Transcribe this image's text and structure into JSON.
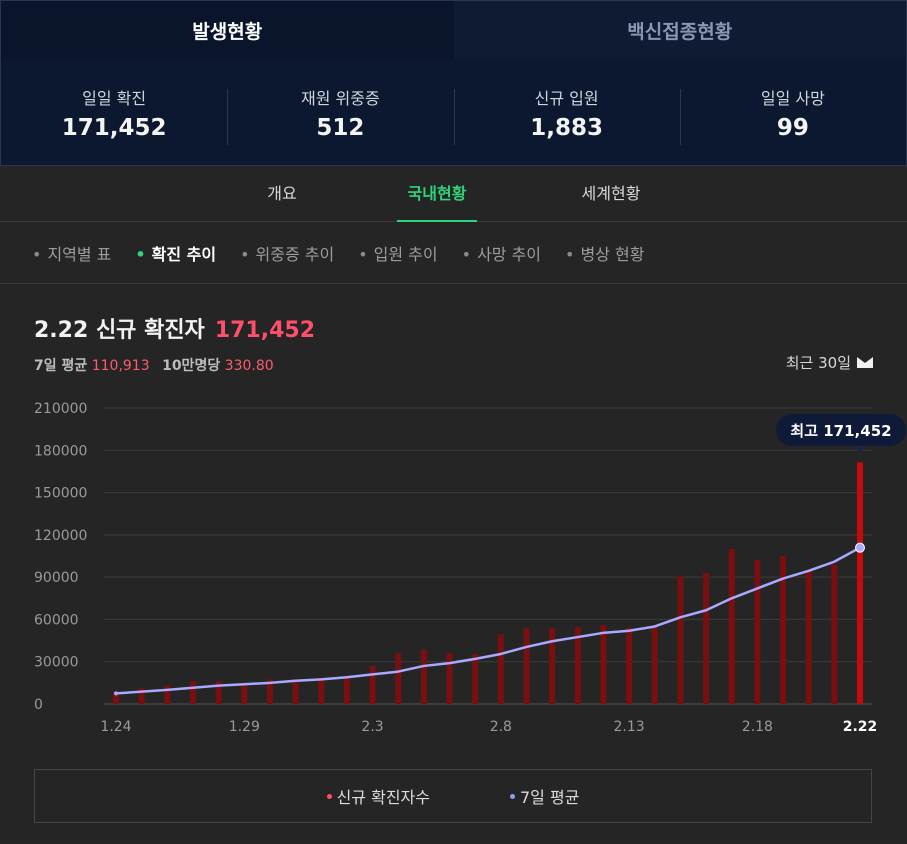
{
  "top_tabs": [
    {
      "label": "발생현황",
      "active": true
    },
    {
      "label": "백신접종현황",
      "active": false
    }
  ],
  "stats": [
    {
      "label": "일일 확진",
      "value": "171,452"
    },
    {
      "label": "재원 위중증",
      "value": "512"
    },
    {
      "label": "신규 입원",
      "value": "1,883"
    },
    {
      "label": "일일 사망",
      "value": "99"
    }
  ],
  "nav_tabs": [
    {
      "label": "개요",
      "active": false
    },
    {
      "label": "국내현황",
      "active": true
    },
    {
      "label": "세계현황",
      "active": false
    }
  ],
  "sub_tabs": [
    {
      "label": "지역별 표",
      "active": false
    },
    {
      "label": "확진 추이",
      "active": true
    },
    {
      "label": "위중증 추이",
      "active": false
    },
    {
      "label": "입원 추이",
      "active": false
    },
    {
      "label": "사망 추이",
      "active": false
    },
    {
      "label": "병상 현황",
      "active": false
    }
  ],
  "header": {
    "date_title": "2.22 신규 확진자",
    "highlight_value": "171,452",
    "avg_label": "7일 평균",
    "avg_value": "110,913",
    "per100k_label": "10만명당",
    "per100k_value": "330.80",
    "period_label": "최근 30일"
  },
  "colors": {
    "bar": "#7a0f12",
    "bar_last": "#c40a0a",
    "line": "#a9a9ff",
    "accent_green": "#2fd37a",
    "accent_red": "#ff4f6a"
  },
  "tooltip": {
    "label": "최고",
    "value": "171,452"
  },
  "chart_data": {
    "type": "bar",
    "categories": [
      "1.24",
      "1.25",
      "1.26",
      "1.27",
      "1.28",
      "1.29",
      "1.30",
      "1.31",
      "2.1",
      "2.2",
      "2.3",
      "2.4",
      "2.5",
      "2.6",
      "2.7",
      "2.8",
      "2.9",
      "2.10",
      "2.11",
      "2.12",
      "2.13",
      "2.14",
      "2.15",
      "2.16",
      "2.17",
      "2.18",
      "2.19",
      "2.20",
      "2.21",
      "2.22"
    ],
    "tick_labels": [
      {
        "index": 0,
        "label": "1.24"
      },
      {
        "index": 5,
        "label": "1.29"
      },
      {
        "index": 10,
        "label": "2.3"
      },
      {
        "index": 15,
        "label": "2.8"
      },
      {
        "index": 20,
        "label": "2.13"
      },
      {
        "index": 25,
        "label": "2.18"
      },
      {
        "index": 29,
        "label": "2.22"
      }
    ],
    "series": [
      {
        "name": "신규 확진자수",
        "type": "bar",
        "values": [
          8500,
          11500,
          13000,
          16000,
          16000,
          14500,
          17500,
          17500,
          18500,
          20000,
          27000,
          36000,
          38500,
          36000,
          35500,
          49500,
          54000,
          54000,
          54500,
          56000,
          54000,
          54500,
          90500,
          93000,
          110000,
          102000,
          105000,
          95000,
          99000,
          171452
        ]
      },
      {
        "name": "7일 평균",
        "type": "line",
        "values": [
          7500,
          8800,
          10000,
          11500,
          13000,
          14000,
          15000,
          16500,
          17500,
          19000,
          21000,
          23000,
          27000,
          29000,
          32000,
          35500,
          40500,
          44500,
          47500,
          50500,
          52000,
          55000,
          61500,
          66500,
          75000,
          82000,
          89000,
          94500,
          101000,
          110913
        ]
      }
    ],
    "y_ticks": [
      0,
      30000,
      60000,
      90000,
      120000,
      150000,
      180000,
      210000
    ],
    "ylim": [
      0,
      210000
    ],
    "grid": true,
    "legend": [
      {
        "label": "신규 확진자수",
        "color": "#ff4f6a"
      },
      {
        "label": "7일 평균",
        "color": "#8e9bff"
      }
    ],
    "legend_position": "bottom"
  }
}
